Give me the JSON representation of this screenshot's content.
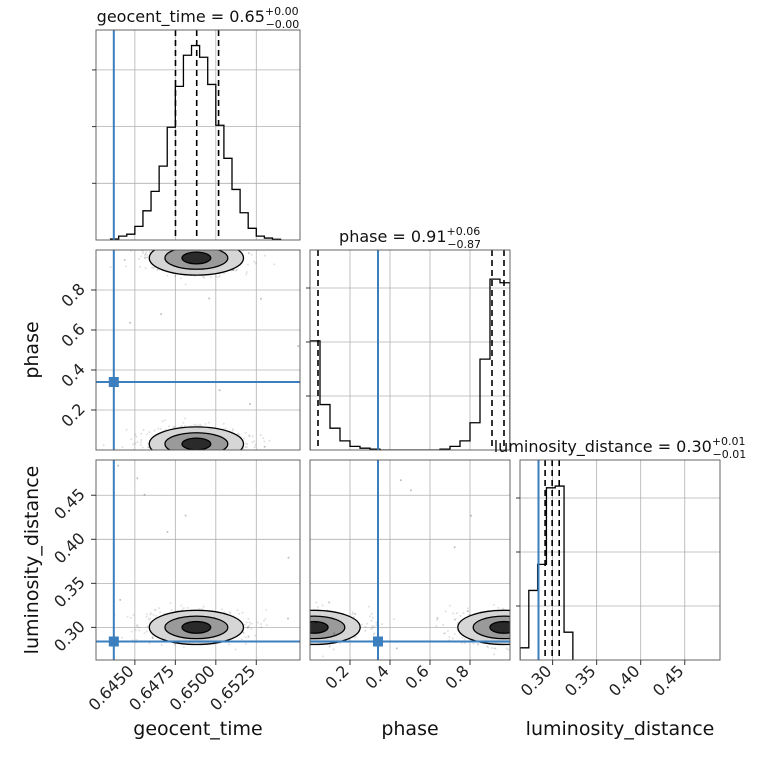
{
  "chart_data": {
    "type": "corner",
    "parameters": [
      "geocent_time",
      "phase",
      "luminosity_distance"
    ],
    "truth": {
      "geocent_time": 0.6437,
      "phase": 0.34,
      "luminosity_distance": 0.284
    },
    "truth_color": "#3b7fbf",
    "panels": [
      {
        "type": "histogram",
        "param": "geocent_time",
        "title": {
          "name": "geocent_time",
          "median": "0.65",
          "plus": "+0.00",
          "minus": "−0.00"
        },
        "xlim": [
          0.6426,
          0.6552
        ],
        "ylim": [
          0,
          1.08
        ],
        "bins": [
          0.6435,
          0.644,
          0.6445,
          0.645,
          0.6455,
          0.646,
          0.6465,
          0.647,
          0.6475,
          0.648,
          0.6485,
          0.649,
          0.6495,
          0.65,
          0.6505,
          0.651,
          0.6515,
          0.652,
          0.6525,
          0.653,
          0.6535,
          0.654
        ],
        "counts": [
          0.005,
          0.02,
          0.03,
          0.07,
          0.15,
          0.25,
          0.38,
          0.58,
          0.79,
          0.95,
          1.0,
          0.94,
          0.8,
          0.59,
          0.42,
          0.26,
          0.14,
          0.06,
          0.02,
          0.01,
          0.004
        ],
        "quantiles": [
          0.64751,
          0.64882,
          0.65017
        ]
      },
      {
        "type": "histogram",
        "param": "phase",
        "title": {
          "name": "phase",
          "median": "0.91",
          "plus": "+0.06",
          "minus": "−0.87"
        },
        "xlim": [
          0.0,
          1.0
        ],
        "ylim": [
          0,
          1.1
        ],
        "bins": [
          0.0,
          0.05,
          0.1,
          0.15,
          0.2,
          0.25,
          0.3,
          0.35,
          0.4,
          0.45,
          0.5,
          0.55,
          0.6,
          0.65,
          0.7,
          0.75,
          0.8,
          0.85,
          0.9,
          0.95,
          1.0
        ],
        "counts": [
          0.6,
          0.25,
          0.12,
          0.05,
          0.02,
          0.01,
          0.005,
          0,
          0,
          0,
          0,
          0,
          0,
          0.005,
          0.02,
          0.05,
          0.15,
          0.5,
          0.94,
          0.92
        ],
        "quantiles": [
          0.04,
          0.91,
          0.97
        ]
      },
      {
        "type": "histogram",
        "param": "luminosity_distance",
        "title": {
          "name": "luminosity_distance",
          "median": "0.30",
          "plus": "+0.01",
          "minus": "−0.01"
        },
        "xlim": [
          0.263,
          0.49
        ],
        "ylim": [
          0,
          1.15
        ],
        "bins": [
          0.263,
          0.273,
          0.283,
          0.293,
          0.303,
          0.313,
          0.323
        ],
        "counts": [
          0.07,
          0.4,
          0.55,
          0.99,
          1.0,
          0.16
        ],
        "quantiles": [
          0.2915,
          0.2995,
          0.3075
        ]
      }
    ],
    "scatter_panels": [
      {
        "x": "geocent_time",
        "y": "phase",
        "xlim": [
          0.6426,
          0.6552
        ],
        "ylim": [
          0.0,
          1.0
        ],
        "clusters": [
          {
            "x": 0.6488,
            "y": 0.96,
            "label": "upper mode"
          },
          {
            "x": 0.6488,
            "y": 0.03,
            "label": "lower mode"
          }
        ]
      },
      {
        "x": "geocent_time",
        "y": "luminosity_distance",
        "xlim": [
          0.6426,
          0.6552
        ],
        "ylim": [
          0.263,
          0.49
        ],
        "clusters": [
          {
            "x": 0.6488,
            "y": 0.3,
            "label": "main mode"
          }
        ]
      },
      {
        "x": "phase",
        "y": "luminosity_distance",
        "xlim": [
          0.0,
          1.0
        ],
        "ylim": [
          0.263,
          0.49
        ],
        "clusters": [
          {
            "x": 0.02,
            "y": 0.3,
            "label": "left mode"
          },
          {
            "x": 0.97,
            "y": 0.3,
            "label": "right mode"
          }
        ]
      }
    ],
    "axes": {
      "geocent_time": {
        "ticks": [
          0.645,
          0.6475,
          0.65,
          0.6525
        ],
        "labels": [
          "0.6450",
          "0.6475",
          "0.6500",
          "0.6525"
        ]
      },
      "phase": {
        "ticks": [
          0.2,
          0.4,
          0.6,
          0.8
        ],
        "labels": [
          "0.2",
          "0.4",
          "0.6",
          "0.8"
        ]
      },
      "luminosity_distance": {
        "ticks": [
          0.3,
          0.35,
          0.4,
          0.45
        ],
        "labels": [
          "0.30",
          "0.35",
          "0.40",
          "0.45"
        ]
      }
    },
    "grid": true
  }
}
